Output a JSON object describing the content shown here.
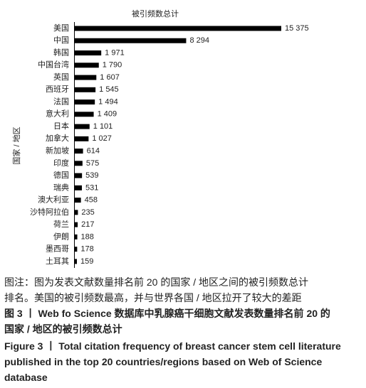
{
  "chart_data": {
    "type": "barh",
    "title": "被引频数总计",
    "y_label": "国家 / 地区",
    "categories": [
      "美国",
      "中国",
      "韩国",
      "中国台湾",
      "英国",
      "西班牙",
      "法国",
      "意大利",
      "日本",
      "加拿大",
      "新加坡",
      "印度",
      "德国",
      "瑞典",
      "澳大利亚",
      "沙特阿拉伯",
      "荷兰",
      "伊朗",
      "墨西哥",
      "土耳其"
    ],
    "values": [
      15375,
      8294,
      1971,
      1790,
      1607,
      1545,
      1494,
      1409,
      1101,
      1027,
      614,
      575,
      539,
      531,
      458,
      235,
      217,
      188,
      178,
      159
    ],
    "value_labels": [
      "15 375",
      "8 294",
      "1 971",
      "1 790",
      "1 607",
      "1 545",
      "1 494",
      "1 409",
      "1 101",
      "1 027",
      "614",
      "575",
      "539",
      "531",
      "458",
      "235",
      "217",
      "188",
      "178",
      "159"
    ],
    "color": "#000000",
    "xlim": [
      0,
      15375
    ]
  },
  "captions": {
    "note": [
      "图注：图为发表文献数量排名前 20 的国家 / 地区之间的被引频数总计",
      "排名。美国的被引频数最高，并与世界各国 / 地区拉开了较大的差距"
    ],
    "title_zh": [
      "图 3 丨 Web fo Science 数据库中乳腺癌干细胞文献发表数量排名前 20 的",
      "国家 / 地区的被引频数总计"
    ],
    "title_en": [
      "Figure 3 丨 Total citation frequency of breast cancer stem cell literature",
      "published in the top 20 countries/regions based on Web of Science",
      "database"
    ]
  }
}
